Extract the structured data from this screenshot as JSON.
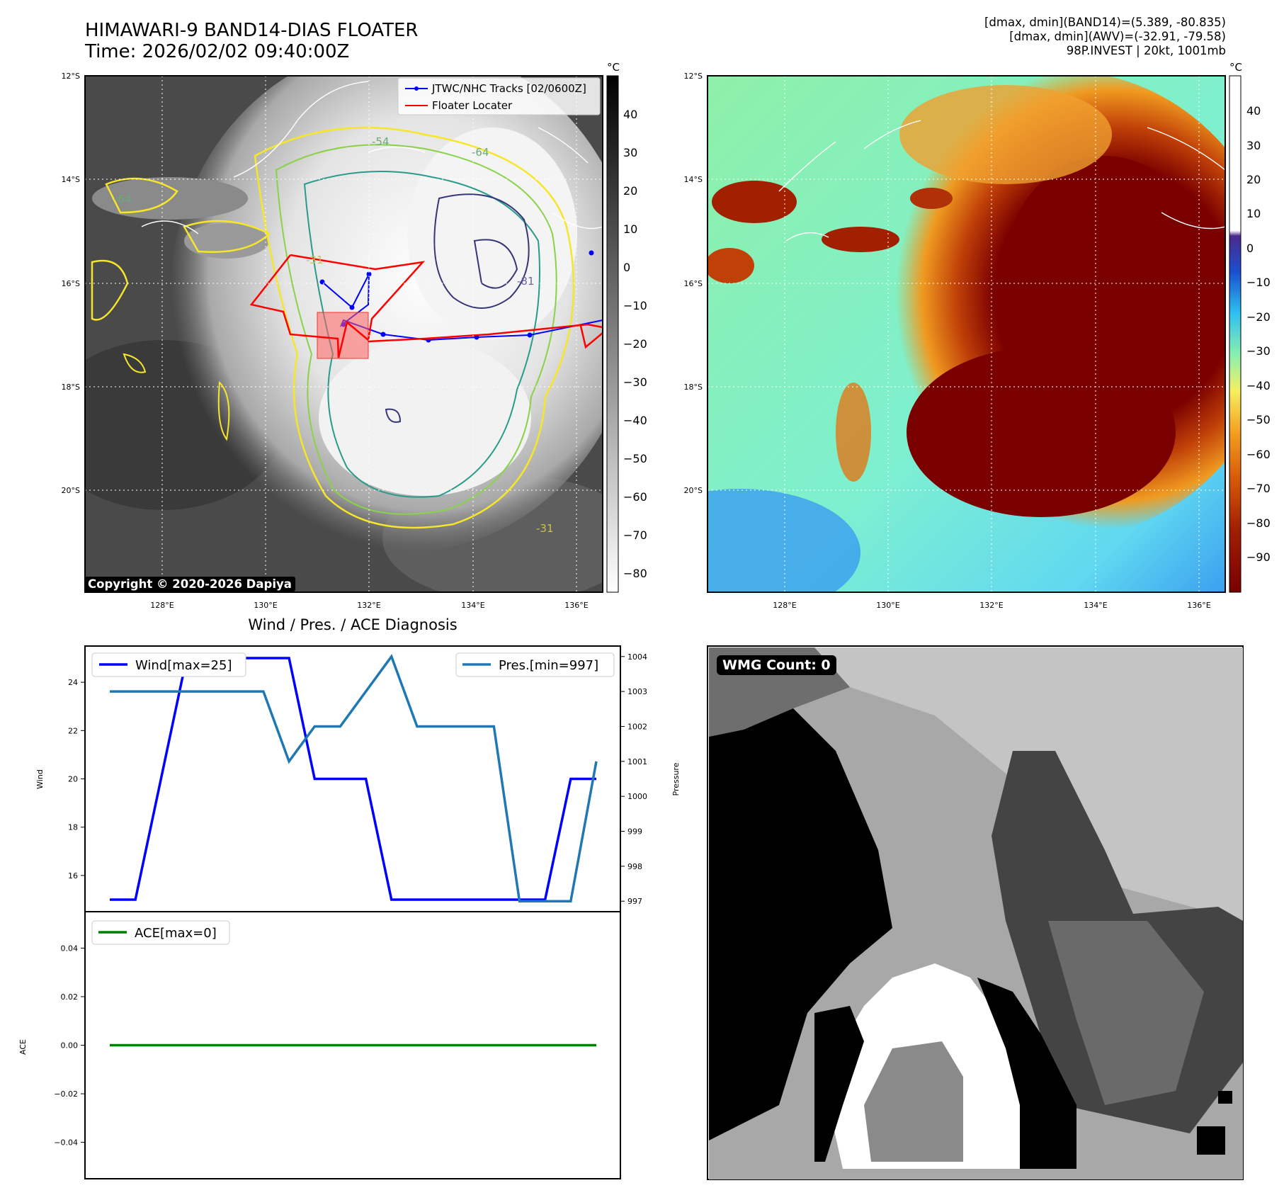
{
  "header": {
    "title_line1": "HIMAWARI-9 BAND14-DIAS FLOATER",
    "title_line2": "Time: 2026/02/02 09:40:00Z",
    "meta_line1": "[dmax, dmin](BAND14)=(5.389, -80.835)",
    "meta_line2": "[dmax, dmin](AWV)=(-32.91, -79.58)",
    "meta_line3": "98P.INVEST | 20kt, 1001mb"
  },
  "copyright": "Copyright © 2020-2026 Dapiya",
  "wmg_label": "WMG Count: 0",
  "maps": {
    "lat_ticks": [
      "12°S",
      "14°S",
      "16°S",
      "18°S",
      "20°S"
    ],
    "lon_ticks": [
      "128°E",
      "130°E",
      "132°E",
      "134°E",
      "136°E"
    ],
    "colorbar_unit": "°C",
    "ir_colorbar_ticks": [
      "40",
      "30",
      "20",
      "10",
      "0",
      "−10",
      "−20",
      "−30",
      "−40",
      "−50",
      "−60",
      "−70",
      "−80"
    ],
    "awv_colorbar_ticks": [
      "40",
      "30",
      "20",
      "10",
      "0",
      "−10",
      "−20",
      "−30",
      "−40",
      "−50",
      "−60",
      "−70",
      "−80",
      "−90"
    ],
    "contour_labels": [
      "-54",
      "-64",
      "-31",
      "-81",
      "-64",
      "-31"
    ],
    "legend": {
      "tracks": "JTWC/NHC Tracks [02/0600Z]",
      "floater": "Floater Locater"
    },
    "colors": {
      "tracks": "#0000ff",
      "floater": "#ff0000"
    }
  },
  "chart_data": [
    {
      "type": "line",
      "title": "Wind / Pres. / ACE Diagnosis",
      "x": [
        0,
        1,
        2,
        3,
        4,
        5,
        6,
        7,
        8,
        9,
        10,
        11,
        12,
        13,
        14,
        15,
        16,
        17,
        18,
        19
      ],
      "series": [
        {
          "name": "Wind[max=25]",
          "axis": "left",
          "color": "#0000ff",
          "values": [
            15,
            15,
            20,
            25,
            25,
            25,
            25,
            25,
            20,
            20,
            20,
            15,
            15,
            15,
            15,
            15,
            15,
            15,
            20,
            20
          ]
        },
        {
          "name": "Pres.[min=997]",
          "axis": "right",
          "color": "#1f77b4",
          "values": [
            1003,
            1003,
            1003,
            1003,
            1003,
            1003,
            1003,
            1001,
            1002,
            1002,
            1003,
            1004,
            1002,
            1002,
            1002,
            1002,
            997,
            997,
            997,
            1001
          ]
        }
      ],
      "ylabel": "Wind",
      "ylabel_right": "Pressure",
      "ylim": [
        14.5,
        25.5
      ],
      "ylim_right": [
        996.7,
        1004.3
      ],
      "yticks": [
        "16",
        "18",
        "20",
        "22",
        "24"
      ],
      "yticks_right": [
        "997",
        "998",
        "999",
        "1000",
        "1001",
        "1002",
        "1003",
        "1004"
      ]
    },
    {
      "type": "line",
      "x": [
        0,
        19
      ],
      "series": [
        {
          "name": "ACE[max=0]",
          "color": "#008000",
          "values": [
            0,
            0
          ]
        }
      ],
      "ylabel": "ACE",
      "ylim": [
        -0.055,
        0.055
      ],
      "yticks": [
        "0.04",
        "0.02",
        "0.00",
        "−0.02",
        "−0.04"
      ]
    }
  ]
}
